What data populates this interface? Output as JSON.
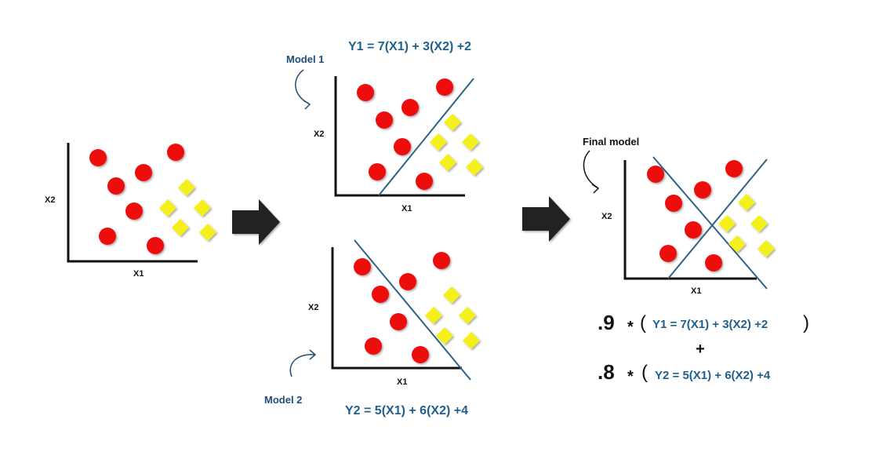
{
  "colors": {
    "circle": "#ee0e0e",
    "diamond": "#f3f01f",
    "boundary": "#2e6186",
    "axis": "#111111",
    "arrow": "#222222",
    "equation": "#1f5f8b"
  },
  "axis_labels": {
    "x": "X1",
    "y": "X2"
  },
  "model1": {
    "label": "Model 1",
    "equation": "Y1 = 7(X1) + 3(X2) +2"
  },
  "model2": {
    "label": "Model 2",
    "equation": "Y2 = 5(X1) + 6(X2) +4"
  },
  "final": {
    "label": "Final model",
    "weight1": ".9",
    "weight2": ".8",
    "times": "*",
    "open_paren": "(",
    "close_paren": ")",
    "plus": "+",
    "term1": "Y1 = 7(X1) + 3(X2) +2",
    "term2": "Y2 = 5(X1) + 6(X2) +4"
  }
}
